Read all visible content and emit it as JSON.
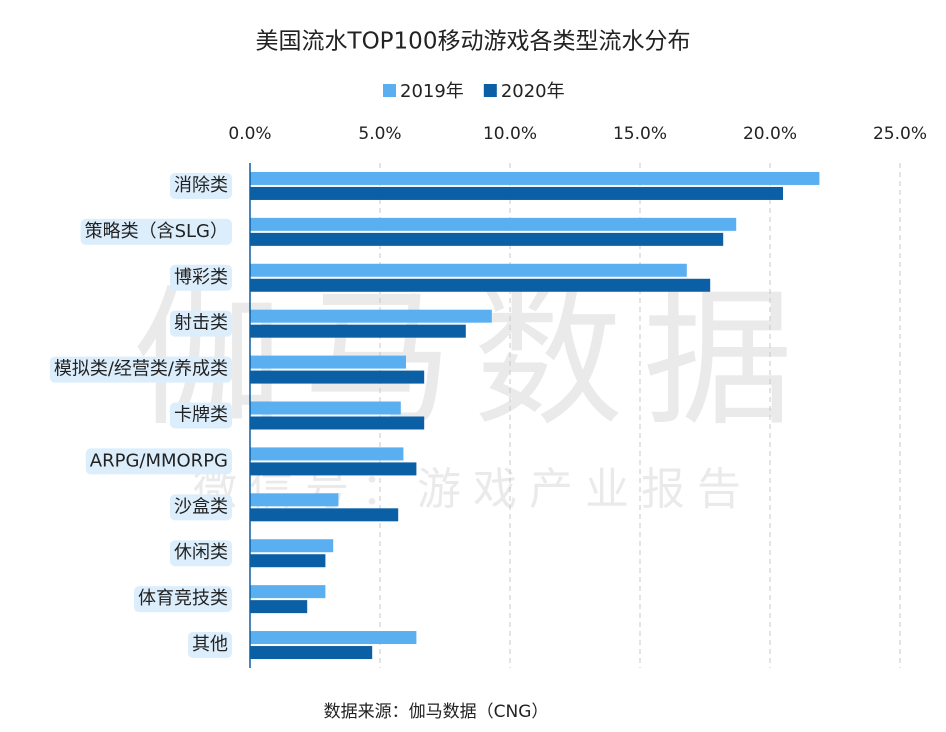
{
  "chart_data": {
    "type": "bar",
    "orientation": "horizontal",
    "title": "美国流水TOP100移动游戏各类型流水分布",
    "categories": [
      "消除类",
      "策略类（含SLG）",
      "博彩类",
      "射击类",
      "模拟类/经营类/养成类",
      "卡牌类",
      "ARPG/MMORPG",
      "沙盒类",
      "休闲类",
      "体育竞技类",
      "其他"
    ],
    "series": [
      {
        "name": "2019年",
        "color": "#5aaff0",
        "values": [
          21.9,
          18.7,
          16.8,
          9.3,
          6.0,
          5.8,
          5.9,
          3.4,
          3.2,
          2.9,
          6.4
        ]
      },
      {
        "name": "2020年",
        "color": "#0b5fa5",
        "values": [
          20.5,
          18.2,
          17.7,
          8.3,
          6.7,
          6.7,
          6.4,
          5.7,
          2.9,
          2.2,
          4.7
        ]
      }
    ],
    "xlim": [
      0,
      25
    ],
    "xticks": [
      {
        "value": 0,
        "label": "0.0%"
      },
      {
        "value": 5,
        "label": "5.0%"
      },
      {
        "value": 10,
        "label": "10.0%"
      },
      {
        "value": 15,
        "label": "15.0%"
      },
      {
        "value": 20,
        "label": "20.0%"
      },
      {
        "value": 25,
        "label": "25.0%"
      }
    ],
    "grid": true,
    "source": "数据来源：伽马数据（CNG）",
    "watermark": [
      "伽马数据",
      "微信号：游戏产业报告"
    ]
  }
}
